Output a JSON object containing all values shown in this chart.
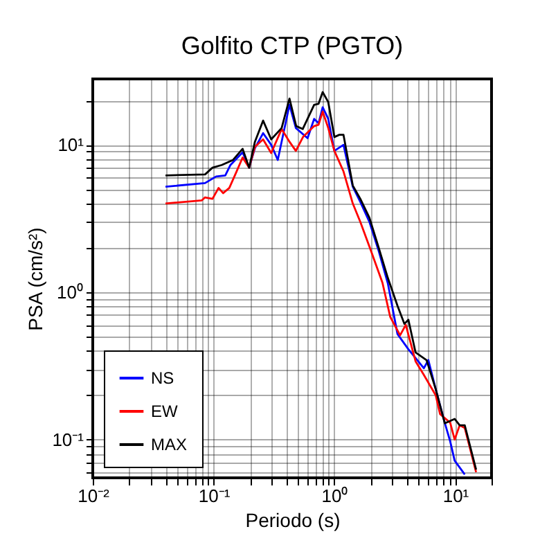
{
  "chart_data": {
    "type": "line",
    "title": "Golfito CTP (PGTO)",
    "xlabel": "Periodo (s)",
    "ylabel": "PSA (cm/s²)",
    "log": "xy",
    "grid": true,
    "legend": "bottom left",
    "line_style": "solid",
    "marker": "none",
    "xlim": [
      0.01,
      20
    ],
    "xticks": [
      {
        "value": 0.01,
        "label": "10⁻²"
      },
      {
        "value": 0.02,
        "label": null
      },
      {
        "value": 0.03,
        "label": null
      },
      {
        "value": 0.04,
        "label": null
      },
      {
        "value": 0.05,
        "label": null
      },
      {
        "value": 0.06,
        "label": null
      },
      {
        "value": 0.07,
        "label": null
      },
      {
        "value": 0.08,
        "label": null
      },
      {
        "value": 0.09,
        "label": null
      },
      {
        "value": 0.1,
        "label": "10⁻¹"
      },
      {
        "value": 0.2,
        "label": null
      },
      {
        "value": 0.3,
        "label": null
      },
      {
        "value": 0.4,
        "label": null
      },
      {
        "value": 0.5,
        "label": null
      },
      {
        "value": 0.6,
        "label": null
      },
      {
        "value": 0.7,
        "label": null
      },
      {
        "value": 0.8,
        "label": null
      },
      {
        "value": 0.9,
        "label": null
      },
      {
        "value": 1,
        "label": "10⁰"
      },
      {
        "value": 2,
        "label": null
      },
      {
        "value": 3,
        "label": null
      },
      {
        "value": 4,
        "label": null
      },
      {
        "value": 5,
        "label": null
      },
      {
        "value": 6,
        "label": null
      },
      {
        "value": 7,
        "label": null
      },
      {
        "value": 8,
        "label": null
      },
      {
        "value": 9,
        "label": null
      },
      {
        "value": 10,
        "label": "10¹"
      },
      {
        "value": 20,
        "label": null
      }
    ],
    "ylim": [
      0.055,
      28
    ],
    "yticks": [
      {
        "value": 0.06,
        "label": null
      },
      {
        "value": 0.07,
        "label": null
      },
      {
        "value": 0.08,
        "label": null
      },
      {
        "value": 0.09,
        "label": null
      },
      {
        "value": 0.1,
        "label": "10⁻¹"
      },
      {
        "value": 0.2,
        "label": null
      },
      {
        "value": 0.3,
        "label": null
      },
      {
        "value": 0.4,
        "label": null
      },
      {
        "value": 0.5,
        "label": null
      },
      {
        "value": 0.6,
        "label": null
      },
      {
        "value": 0.7,
        "label": null
      },
      {
        "value": 0.8,
        "label": null
      },
      {
        "value": 0.9,
        "label": null
      },
      {
        "value": 1,
        "label": "10⁰"
      },
      {
        "value": 2,
        "label": null
      },
      {
        "value": 3,
        "label": null
      },
      {
        "value": 4,
        "label": null
      },
      {
        "value": 5,
        "label": null
      },
      {
        "value": 6,
        "label": null
      },
      {
        "value": 7,
        "label": null
      },
      {
        "value": 8,
        "label": null
      },
      {
        "value": 9,
        "label": null
      },
      {
        "value": 10,
        "label": "10¹"
      },
      {
        "value": 20,
        "label": null
      }
    ],
    "series": [
      {
        "name": "NS",
        "color": "#0000ff",
        "x": [
          0.04,
          0.085,
          0.105,
          0.125,
          0.138,
          0.174,
          0.197,
          0.22,
          0.257,
          0.3,
          0.34,
          0.425,
          0.48,
          0.6,
          0.68,
          0.74,
          0.8,
          0.89,
          1.0,
          1.19,
          1.42,
          1.64,
          1.95,
          2.33,
          2.77,
          3.33,
          4.1,
          5.5,
          6.0,
          6.9,
          8.2,
          9.1,
          9.9,
          12
        ],
        "values": [
          5.2,
          5.5,
          6.1,
          6.2,
          7.3,
          8.9,
          7.0,
          9.5,
          12,
          10,
          7.9,
          18.7,
          13,
          11.1,
          15,
          14,
          18,
          15,
          9.1,
          10,
          5.2,
          4.1,
          3.0,
          1.9,
          1.15,
          0.52,
          0.41,
          0.305,
          0.346,
          0.22,
          0.13,
          0.097,
          0.072,
          0.058
        ]
      },
      {
        "name": "EW",
        "color": "#ff0000",
        "x": [
          0.04,
          0.08,
          0.085,
          0.098,
          0.11,
          0.12,
          0.135,
          0.15,
          0.174,
          0.197,
          0.22,
          0.257,
          0.3,
          0.366,
          0.425,
          0.48,
          0.55,
          0.68,
          0.74,
          0.8,
          0.89,
          1.0,
          1.19,
          1.42,
          1.64,
          2.0,
          2.5,
          2.9,
          3.5,
          3.9,
          4.7,
          5.5,
          6.9,
          7.5,
          9.1,
          9.9,
          10.9,
          12,
          14.9
        ],
        "values": [
          4.0,
          4.2,
          4.4,
          4.3,
          5.1,
          4.7,
          5.1,
          6.2,
          8.2,
          7.0,
          9.7,
          10.9,
          8.8,
          12.8,
          10.5,
          9.1,
          11.3,
          13.4,
          13.7,
          16.8,
          13,
          9.1,
          6.6,
          4.0,
          3.0,
          1.93,
          1.16,
          0.68,
          0.51,
          0.6,
          0.34,
          0.275,
          0.2,
          0.149,
          0.13,
          0.1,
          0.125,
          0.12,
          0.06
        ]
      },
      {
        "name": "MAX",
        "color": "#000000",
        "x": [
          0.04,
          0.085,
          0.098,
          0.117,
          0.145,
          0.174,
          0.197,
          0.22,
          0.257,
          0.3,
          0.366,
          0.425,
          0.483,
          0.547,
          0.68,
          0.74,
          0.8,
          0.89,
          1.0,
          1.1,
          1.19,
          1.42,
          1.64,
          1.95,
          2.33,
          2.77,
          3.33,
          3.8,
          4.1,
          4.7,
          5.8,
          6.9,
          8.2,
          9.9,
          10.9,
          12,
          14.9
        ],
        "values": [
          6.2,
          6.3,
          7.0,
          7.3,
          7.9,
          9.4,
          7.0,
          10.5,
          14.6,
          10.9,
          13,
          20.6,
          13.4,
          12.8,
          18.7,
          19,
          22.8,
          19.5,
          11.3,
          11.7,
          11.7,
          5.3,
          4.3,
          3.2,
          2.0,
          1.25,
          0.81,
          0.61,
          0.65,
          0.39,
          0.346,
          0.22,
          0.129,
          0.138,
          0.125,
          0.125,
          0.0625
        ]
      }
    ]
  }
}
